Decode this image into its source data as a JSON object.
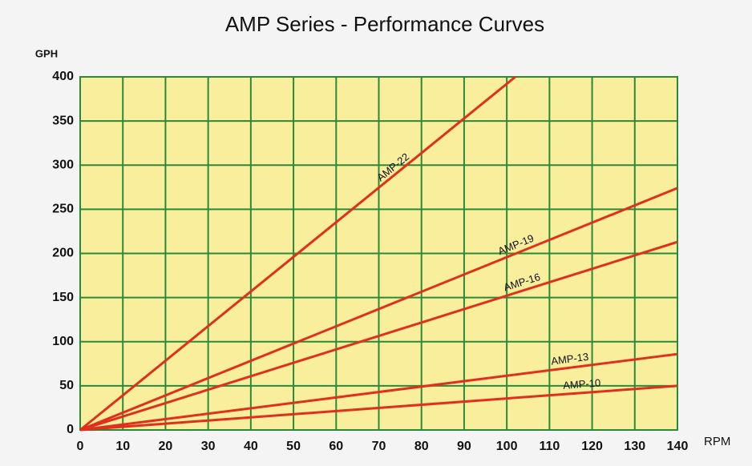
{
  "chart_data": {
    "type": "line",
    "title": "AMP Series - Performance Curves",
    "xlabel": "RPM",
    "ylabel": "GPH",
    "xlim": [
      0,
      140
    ],
    "ylim": [
      0,
      400
    ],
    "xticks": [
      0,
      10,
      20,
      30,
      40,
      50,
      60,
      70,
      80,
      90,
      100,
      110,
      120,
      130,
      140
    ],
    "yticks": [
      0,
      50,
      100,
      150,
      200,
      250,
      300,
      350,
      400
    ],
    "grid": true,
    "series": [
      {
        "name": "AMP-22",
        "color": "#e0301c",
        "x": [
          0,
          102
        ],
        "values": [
          0,
          400
        ]
      },
      {
        "name": "AMP-19",
        "color": "#e0301c",
        "x": [
          0,
          140
        ],
        "values": [
          0,
          274
        ]
      },
      {
        "name": "AMP-16",
        "color": "#e0301c",
        "x": [
          0,
          140
        ],
        "values": [
          0,
          213
        ]
      },
      {
        "name": "AMP-13",
        "color": "#e0301c",
        "x": [
          0,
          140
        ],
        "values": [
          0,
          86
        ]
      },
      {
        "name": "AMP-10",
        "color": "#e0301c",
        "x": [
          0,
          140
        ],
        "values": [
          0,
          50
        ]
      }
    ]
  }
}
